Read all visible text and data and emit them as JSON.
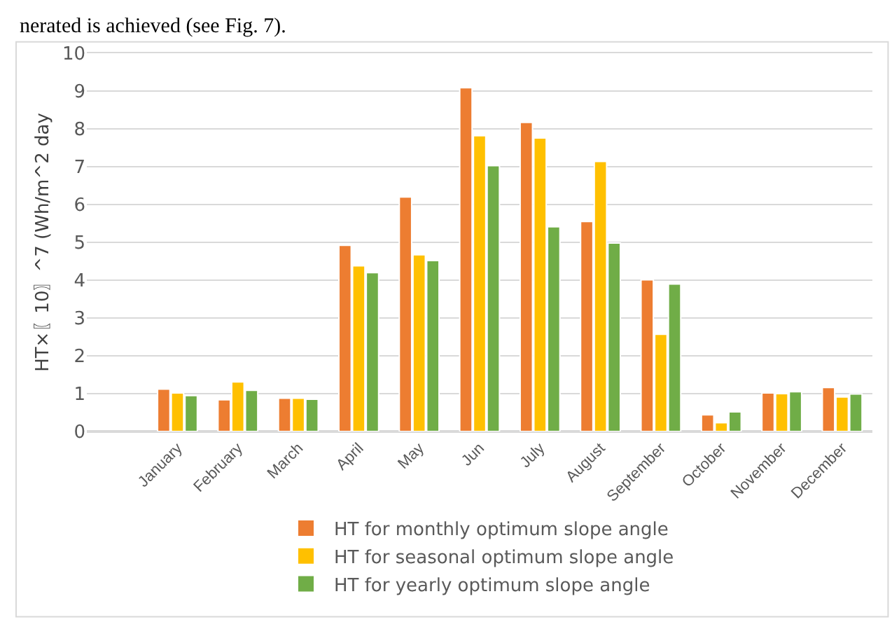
{
  "chart_data": {
    "type": "bar",
    "annotations": [
      "nerated is achieved (see Fig. 7)."
    ],
    "ylabel": "HT×〖10〗^7 (Wh/m^2 day",
    "categories": [
      null,
      "January",
      "February",
      "March",
      "April",
      "May",
      "Jun",
      "July",
      "August",
      "September",
      "October",
      "November",
      "December"
    ],
    "series": [
      {
        "name": "HT for monthly optimum slope angle",
        "color": "#ed7d31",
        "values": [
          null,
          1.12,
          0.84,
          0.88,
          4.92,
          6.2,
          9.09,
          8.17,
          5.55,
          4.01,
          0.44,
          1.02,
          1.16
        ]
      },
      {
        "name": "HT for seasonal optimum slope angle",
        "color": "#ffc000",
        "values": [
          null,
          1.02,
          1.31,
          0.88,
          4.38,
          4.67,
          7.82,
          7.76,
          7.14,
          2.57,
          0.23,
          1.0,
          0.91
        ]
      },
      {
        "name": "HT for yearly optimum slope angle",
        "color": "#70ad47",
        "values": [
          null,
          0.95,
          1.09,
          0.85,
          4.2,
          4.52,
          7.03,
          5.41,
          4.98,
          3.9,
          0.52,
          1.05,
          0.99
        ]
      }
    ],
    "ylim": [
      0,
      10
    ],
    "yticks": [
      0,
      1,
      2,
      3,
      4,
      5,
      6,
      7,
      8,
      9,
      10
    ],
    "grid": "y",
    "legend": "bottom"
  }
}
